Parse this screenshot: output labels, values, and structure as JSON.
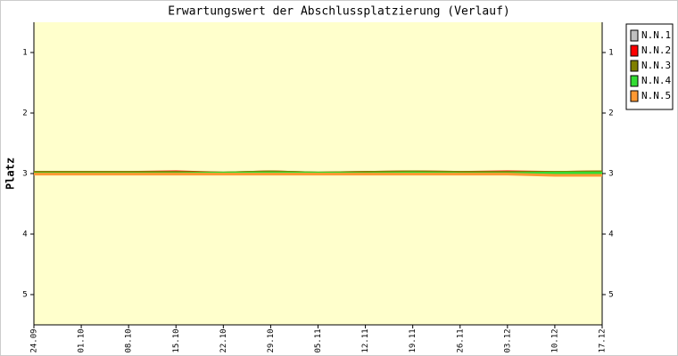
{
  "chart_data": {
    "type": "line",
    "title": "Erwartungswert der Abschlussplatzierung (Verlauf)",
    "ylabel": "Platz",
    "categories": [
      "24.09",
      "01.10",
      "08.10",
      "15.10",
      "22.10",
      "29.10",
      "05.11",
      "12.11",
      "19.11",
      "26.11",
      "03.12",
      "10.12",
      "17.12"
    ],
    "series": [
      {
        "name": "N.N.1",
        "color": "#c0c0c0",
        "values": [
          3.0,
          3.0,
          3.0,
          3.0,
          3.0,
          3.0,
          3.0,
          3.0,
          3.0,
          3.0,
          3.0,
          3.0,
          3.0
        ]
      },
      {
        "name": "N.N.2",
        "color": "#ff0000",
        "values": [
          2.98,
          2.98,
          2.98,
          2.97,
          2.99,
          2.97,
          2.99,
          2.98,
          2.97,
          2.98,
          2.97,
          2.98,
          2.97
        ]
      },
      {
        "name": "N.N.3",
        "color": "#808000",
        "values": [
          2.98,
          2.98,
          2.98,
          2.98,
          2.99,
          2.97,
          2.99,
          2.98,
          2.97,
          2.98,
          2.98,
          2.98,
          2.97
        ]
      },
      {
        "name": "N.N.4",
        "color": "#33dd33",
        "values": [
          3.0,
          3.0,
          3.0,
          3.0,
          2.99,
          2.99,
          2.99,
          3.0,
          2.99,
          3.0,
          3.0,
          2.99,
          2.99
        ]
      },
      {
        "name": "N.N.5",
        "color": "#ff9933",
        "values": [
          3.01,
          3.01,
          3.01,
          3.01,
          3.01,
          3.01,
          3.01,
          3.01,
          3.01,
          3.01,
          3.01,
          3.03,
          3.03
        ]
      }
    ],
    "ylim": [
      0.5,
      5.5
    ],
    "yticks": [
      1,
      2,
      3,
      4,
      5
    ],
    "y_inverted": true,
    "legend": "right"
  }
}
